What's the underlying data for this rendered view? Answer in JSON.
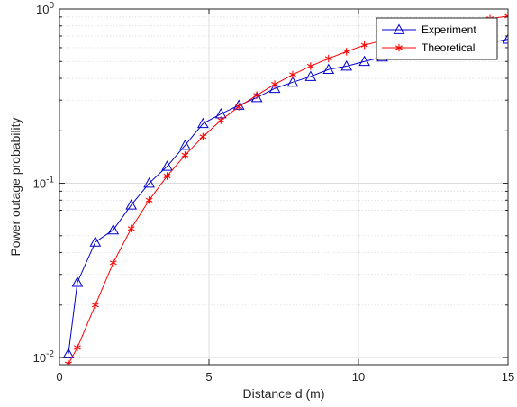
{
  "chart_data": {
    "type": "line",
    "xlabel": "Distance d (m)",
    "ylabel": "Power outage probability",
    "xlim": [
      0,
      15
    ],
    "ylim": [
      0.0091,
      1
    ],
    "yscale": "log",
    "grid": true,
    "legend_position": "top-right",
    "x_ticks": [
      "0",
      "5",
      "10",
      "15"
    ],
    "y_ticks": [
      {
        "value": 0.01,
        "base": "10",
        "exp": "-2"
      },
      {
        "value": 0.1,
        "base": "10",
        "exp": "-1"
      },
      {
        "value": 1,
        "base": "10",
        "exp": "0"
      }
    ],
    "series": [
      {
        "name": "Experiment",
        "color": "#0000cc",
        "marker": "triangle",
        "x": [
          0.3,
          0.6,
          1.2,
          1.8,
          2.4,
          3.0,
          3.6,
          4.2,
          4.8,
          5.4,
          6.0,
          6.6,
          7.2,
          7.8,
          8.4,
          9.0,
          9.6,
          10.2,
          10.8,
          11.4,
          12.0,
          12.6,
          13.2,
          13.8,
          14.4,
          15.0
        ],
        "y": [
          0.0105,
          0.027,
          0.046,
          0.054,
          0.075,
          0.1,
          0.125,
          0.165,
          0.22,
          0.25,
          0.28,
          0.31,
          0.35,
          0.38,
          0.41,
          0.45,
          0.47,
          0.5,
          0.53,
          0.55,
          0.57,
          0.59,
          0.61,
          0.63,
          0.64,
          0.67
        ]
      },
      {
        "name": "Theoretical",
        "color": "#ff0000",
        "marker": "asterisk",
        "x": [
          0.3,
          0.6,
          1.2,
          1.8,
          2.4,
          3.0,
          3.6,
          4.2,
          4.8,
          5.4,
          6.0,
          6.6,
          7.2,
          7.8,
          8.4,
          9.0,
          9.6,
          10.2,
          10.8,
          11.4,
          12.0,
          12.6,
          13.2,
          13.8,
          14.4,
          15.0
        ],
        "y": [
          0.0092,
          0.0114,
          0.02,
          0.035,
          0.055,
          0.08,
          0.11,
          0.145,
          0.185,
          0.23,
          0.275,
          0.32,
          0.37,
          0.42,
          0.47,
          0.52,
          0.57,
          0.62,
          0.66,
          0.7,
          0.74,
          0.78,
          0.81,
          0.85,
          0.88,
          0.91
        ]
      }
    ]
  }
}
